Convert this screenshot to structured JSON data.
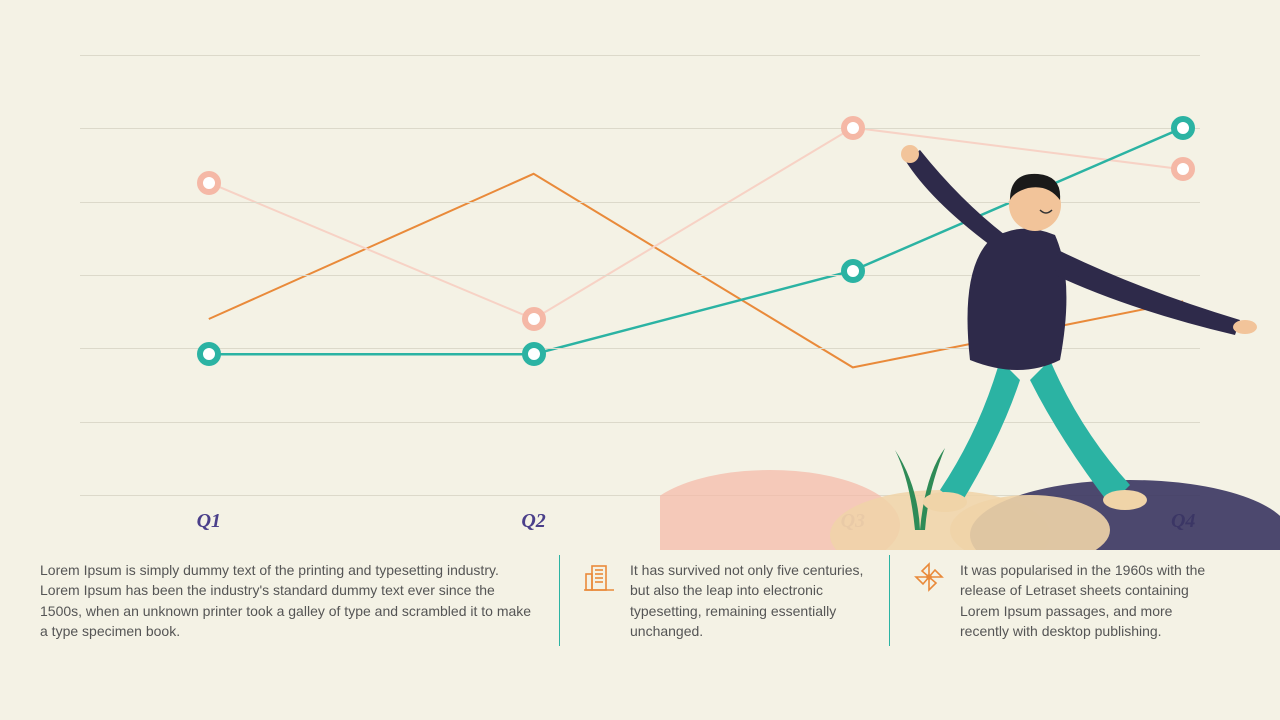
{
  "chart": {
    "type": "line",
    "background_color": "#f4f2e5",
    "grid_color": "#dcd9ca",
    "gridlines_y": [
      0,
      0.167,
      0.333,
      0.5,
      0.667,
      0.833,
      1.0
    ],
    "xaxis": {
      "labels": [
        "Q1",
        "Q2",
        "Q3",
        "Q4"
      ],
      "positions": [
        0.115,
        0.405,
        0.69,
        0.985
      ],
      "font_color": "#4a3f8a",
      "font_style": "italic",
      "font_size": 20
    },
    "series": [
      {
        "name": "orange",
        "color": "#e98a3a",
        "line_width": 2,
        "has_markers": false,
        "points": [
          [
            0.115,
            0.6
          ],
          [
            0.405,
            0.27
          ],
          [
            0.69,
            0.71
          ],
          [
            0.985,
            0.56
          ]
        ]
      },
      {
        "name": "pink",
        "color": "#f5b8a6",
        "line_color": "#f7d2c5",
        "line_width": 2,
        "has_markers": true,
        "marker_size": 24,
        "marker_border": 6,
        "points": [
          [
            0.115,
            0.29
          ],
          [
            0.405,
            0.6
          ],
          [
            0.69,
            0.165
          ],
          [
            0.985,
            0.26
          ]
        ]
      },
      {
        "name": "teal",
        "color": "#2bb3a3",
        "line_width": 2.5,
        "has_markers": true,
        "marker_size": 24,
        "marker_border": 6,
        "points": [
          [
            0.115,
            0.68
          ],
          [
            0.405,
            0.68
          ],
          [
            0.69,
            0.49
          ],
          [
            0.985,
            0.165
          ]
        ]
      }
    ]
  },
  "footer": {
    "col1": "Lorem Ipsum is simply dummy text of the printing and typesetting industry. Lorem Ipsum has been the industry's standard dummy text ever since the 1500s, when an unknown printer took a galley of type and scrambled it to make a type specimen book.",
    "col2": "It has survived not only five centuries, but also the leap into electronic typesetting, remaining essentially unchanged.",
    "col3": "It was popularised in the 1960s with the release of Letraset sheets containing Lorem Ipsum passages, and more recently with desktop publishing.",
    "icon_color": "#e98a3a",
    "divider_color": "#2bb3a3",
    "text_color": "#555555",
    "font_size": 14
  },
  "illustration": {
    "person_jacket": "#2e2a4a",
    "person_pants": "#2bb3a3",
    "skin": "#f2c49a",
    "hair": "#1a1a1a",
    "sand": "#f0d4a8",
    "plant": "#2e8b57",
    "hill_pink": "#f5b8a6",
    "hill_dark": "#3a3560"
  }
}
